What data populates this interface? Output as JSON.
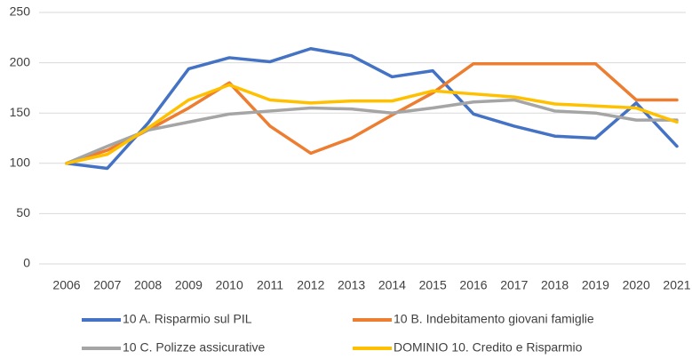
{
  "chart_data": {
    "type": "line",
    "categories": [
      "2006",
      "2007",
      "2008",
      "2009",
      "2010",
      "2011",
      "2012",
      "2013",
      "2014",
      "2015",
      "2016",
      "2017",
      "2018",
      "2019",
      "2020",
      "2021"
    ],
    "series": [
      {
        "name": "10 A. Risparmio sul PIL",
        "color": "#4472c4",
        "values": [
          100,
          95,
          140,
          194,
          205,
          201,
          214,
          207,
          186,
          192,
          149,
          137,
          127,
          125,
          160,
          117
        ]
      },
      {
        "name": "10 B. Indebitamento giovani famiglie",
        "color": "#ed7d31",
        "values": [
          100,
          113,
          133,
          155,
          180,
          137,
          110,
          125,
          148,
          170,
          199,
          199,
          199,
          199,
          163,
          163
        ]
      },
      {
        "name": "10 C. Polizze assicurative",
        "color": "#a5a5a5",
        "values": [
          100,
          117,
          133,
          141,
          149,
          152,
          155,
          154,
          150,
          155,
          161,
          163,
          152,
          150,
          143,
          143
        ]
      },
      {
        "name": "DOMINIO 10. Credito e Risparmio",
        "color": "#ffc000",
        "values": [
          100,
          109,
          135,
          163,
          178,
          163,
          160,
          162,
          162,
          172,
          169,
          166,
          159,
          157,
          155,
          141
        ]
      }
    ],
    "ylim": [
      0,
      250
    ],
    "yticks": [
      0,
      50,
      100,
      150,
      200,
      250
    ],
    "grid": true
  }
}
